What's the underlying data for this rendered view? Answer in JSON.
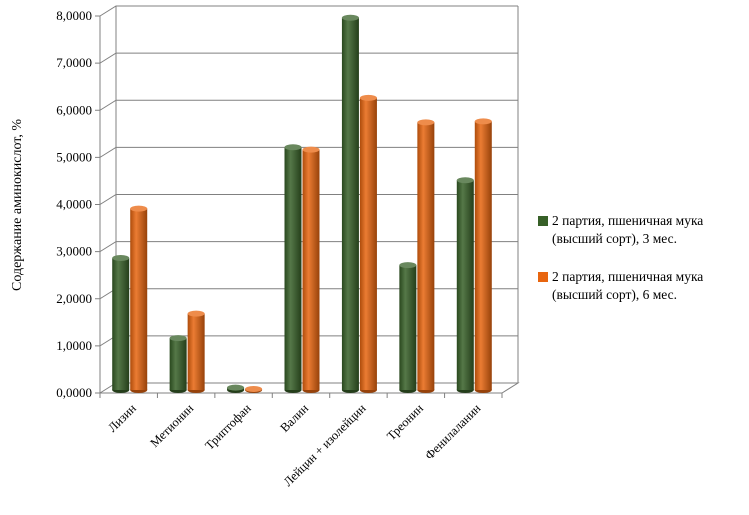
{
  "chart_data": {
    "type": "bar",
    "title": "",
    "xlabel": "",
    "ylabel": "Содержание аминокислот, %",
    "ylim": [
      0,
      8
    ],
    "ytick_values": [
      0,
      1,
      2,
      3,
      4,
      5,
      6,
      7,
      8
    ],
    "ytick_labels": [
      "0,0000",
      "1,0000",
      "2,0000",
      "3,0000",
      "4,0000",
      "5,0000",
      "6,0000",
      "7,0000",
      "8,0000"
    ],
    "grid": true,
    "legend_position": "right",
    "categories": [
      "Лизин",
      "Метионин",
      "Триптофан",
      "Валин",
      "Лейцин + изолейцин",
      "Треонин",
      "Фенилаланин"
    ],
    "series": [
      {
        "name": "2 партия, пшеничная мука (высший сорт), 3 мес.",
        "color": "#376028",
        "values": [
          2.8,
          1.1,
          0.05,
          5.15,
          7.9,
          2.65,
          4.45
        ]
      },
      {
        "name": "2 партия, пшеничная мука (высший сорт), 6 мес.",
        "color": "#E8650F",
        "values": [
          3.85,
          1.62,
          0.02,
          5.1,
          6.2,
          5.68,
          5.7
        ]
      }
    ]
  }
}
